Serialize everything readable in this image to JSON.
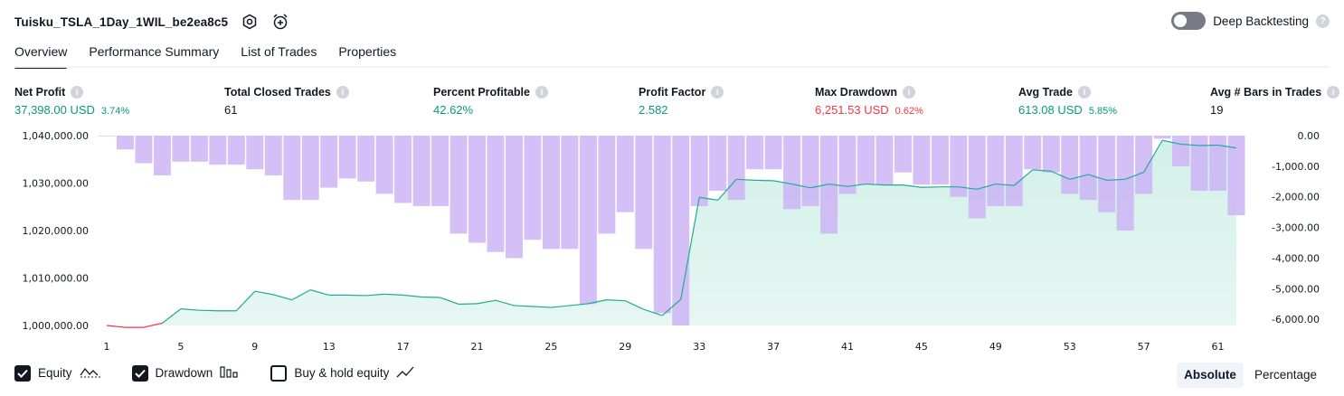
{
  "header": {
    "strategy_title": "Tuisku_TSLA_1Day_1WIL_be2ea8c5",
    "settings_icon": "gear-hex-icon",
    "alert_icon": "alarm-clock-plus-icon",
    "deep_backtesting_label": "Deep Backtesting",
    "deep_backtesting_enabled": false,
    "help_glyph": "?"
  },
  "tabs": [
    {
      "label": "Overview",
      "active": true
    },
    {
      "label": "Performance Summary",
      "active": false
    },
    {
      "label": "List of Trades",
      "active": false
    },
    {
      "label": "Properties",
      "active": false
    }
  ],
  "metrics": {
    "info_glyph": "i",
    "net_profit": {
      "label": "Net Profit",
      "value": "37,398.00 USD",
      "sub": "3.74%"
    },
    "total_closed_trades": {
      "label": "Total Closed Trades",
      "value": "61"
    },
    "percent_profitable": {
      "label": "Percent Profitable",
      "value": "42.62%"
    },
    "profit_factor": {
      "label": "Profit Factor",
      "value": "2.582"
    },
    "max_drawdown": {
      "label": "Max Drawdown",
      "value": "6,251.53 USD",
      "sub": "0.62%"
    },
    "avg_trade": {
      "label": "Avg Trade",
      "value": "613.08 USD",
      "sub": "5.85%"
    },
    "avg_bars": {
      "label": "Avg # Bars in Trades",
      "value": "19"
    }
  },
  "colors": {
    "positive": "#089981",
    "negative": "#f23645",
    "drawdown_bar": "#cdb4f6",
    "equity_fill": "#d2f0e8",
    "equity_line": "#22ab94"
  },
  "chart_data": {
    "type": "bar",
    "x": [
      1,
      2,
      3,
      4,
      5,
      6,
      7,
      8,
      9,
      10,
      11,
      12,
      13,
      14,
      15,
      16,
      17,
      18,
      19,
      20,
      21,
      22,
      23,
      24,
      25,
      26,
      27,
      28,
      29,
      30,
      31,
      32,
      33,
      34,
      35,
      36,
      37,
      38,
      39,
      40,
      41,
      42,
      43,
      44,
      45,
      46,
      47,
      48,
      49,
      50,
      51,
      52,
      53,
      54,
      55,
      56,
      57,
      58,
      59,
      60,
      61,
      62
    ],
    "x_ticks": [
      "1",
      "5",
      "9",
      "13",
      "17",
      "21",
      "25",
      "29",
      "33",
      "37",
      "41",
      "45",
      "49",
      "53",
      "57",
      "61"
    ],
    "left_axis_ticks": [
      "1,040,000.00",
      "1,030,000.00",
      "1,020,000.00",
      "1,010,000.00",
      "1,000,000.00"
    ],
    "right_axis_ticks": [
      "0.00",
      "-1,000.00",
      "-2,000.00",
      "-3,000.00",
      "-4,000.00",
      "-5,000.00",
      "-6,000.00"
    ],
    "equity_ylim": [
      1000000,
      1040000
    ],
    "drawdown_ylim": [
      -6200,
      0
    ],
    "series": [
      {
        "name": "Equity",
        "values": [
          1000000,
          999600,
          999600,
          1000500,
          1003500,
          1003200,
          1003100,
          1003100,
          1007200,
          1006500,
          1005400,
          1007500,
          1006400,
          1006400,
          1006300,
          1006600,
          1006400,
          1006000,
          1005900,
          1004500,
          1004600,
          1005300,
          1004200,
          1004000,
          1003800,
          1004200,
          1004600,
          1005400,
          1005200,
          1003400,
          1002100,
          1005500,
          1027000,
          1026400,
          1030800,
          1030600,
          1030500,
          1029800,
          1029000,
          1029800,
          1029300,
          1029800,
          1029600,
          1029600,
          1029100,
          1029200,
          1029200,
          1028700,
          1029800,
          1029500,
          1032800,
          1032500,
          1030800,
          1031800,
          1030600,
          1030800,
          1032300,
          1039000,
          1038200,
          1037900,
          1038000,
          1037400
        ]
      },
      {
        "name": "Drawdown",
        "values": [
          -20,
          -450,
          -900,
          -1300,
          -850,
          -850,
          -950,
          -950,
          -1100,
          -1300,
          -2100,
          -2100,
          -1700,
          -1400,
          -1500,
          -1900,
          -2200,
          -2300,
          -2300,
          -3200,
          -3500,
          -3800,
          -4000,
          -3400,
          -3700,
          -3700,
          -5500,
          -3200,
          -2500,
          -3700,
          -5800,
          -6200,
          -2300,
          -1800,
          -2100,
          -1100,
          -1100,
          -2400,
          -2300,
          -3200,
          -1900,
          -1600,
          -1600,
          -1200,
          -1600,
          -1600,
          -2000,
          -2700,
          -2300,
          -2300,
          -1100,
          -1200,
          -1900,
          -2100,
          -2500,
          -3100,
          -1900,
          -100,
          -1000,
          -1800,
          -1800,
          -2600
        ]
      }
    ],
    "grid": false
  },
  "legend": {
    "equity_label": "Equity",
    "equity_checked": true,
    "equity_icon": "equity-line-icon",
    "drawdown_label": "Drawdown",
    "drawdown_checked": true,
    "drawdown_icon": "drawdown-bars-icon",
    "buyhold_label": "Buy & hold equity",
    "buyhold_checked": false,
    "buyhold_icon": "buy-hold-line-icon"
  },
  "scale": {
    "absolute_label": "Absolute",
    "percentage_label": "Percentage",
    "selected": "Absolute"
  }
}
